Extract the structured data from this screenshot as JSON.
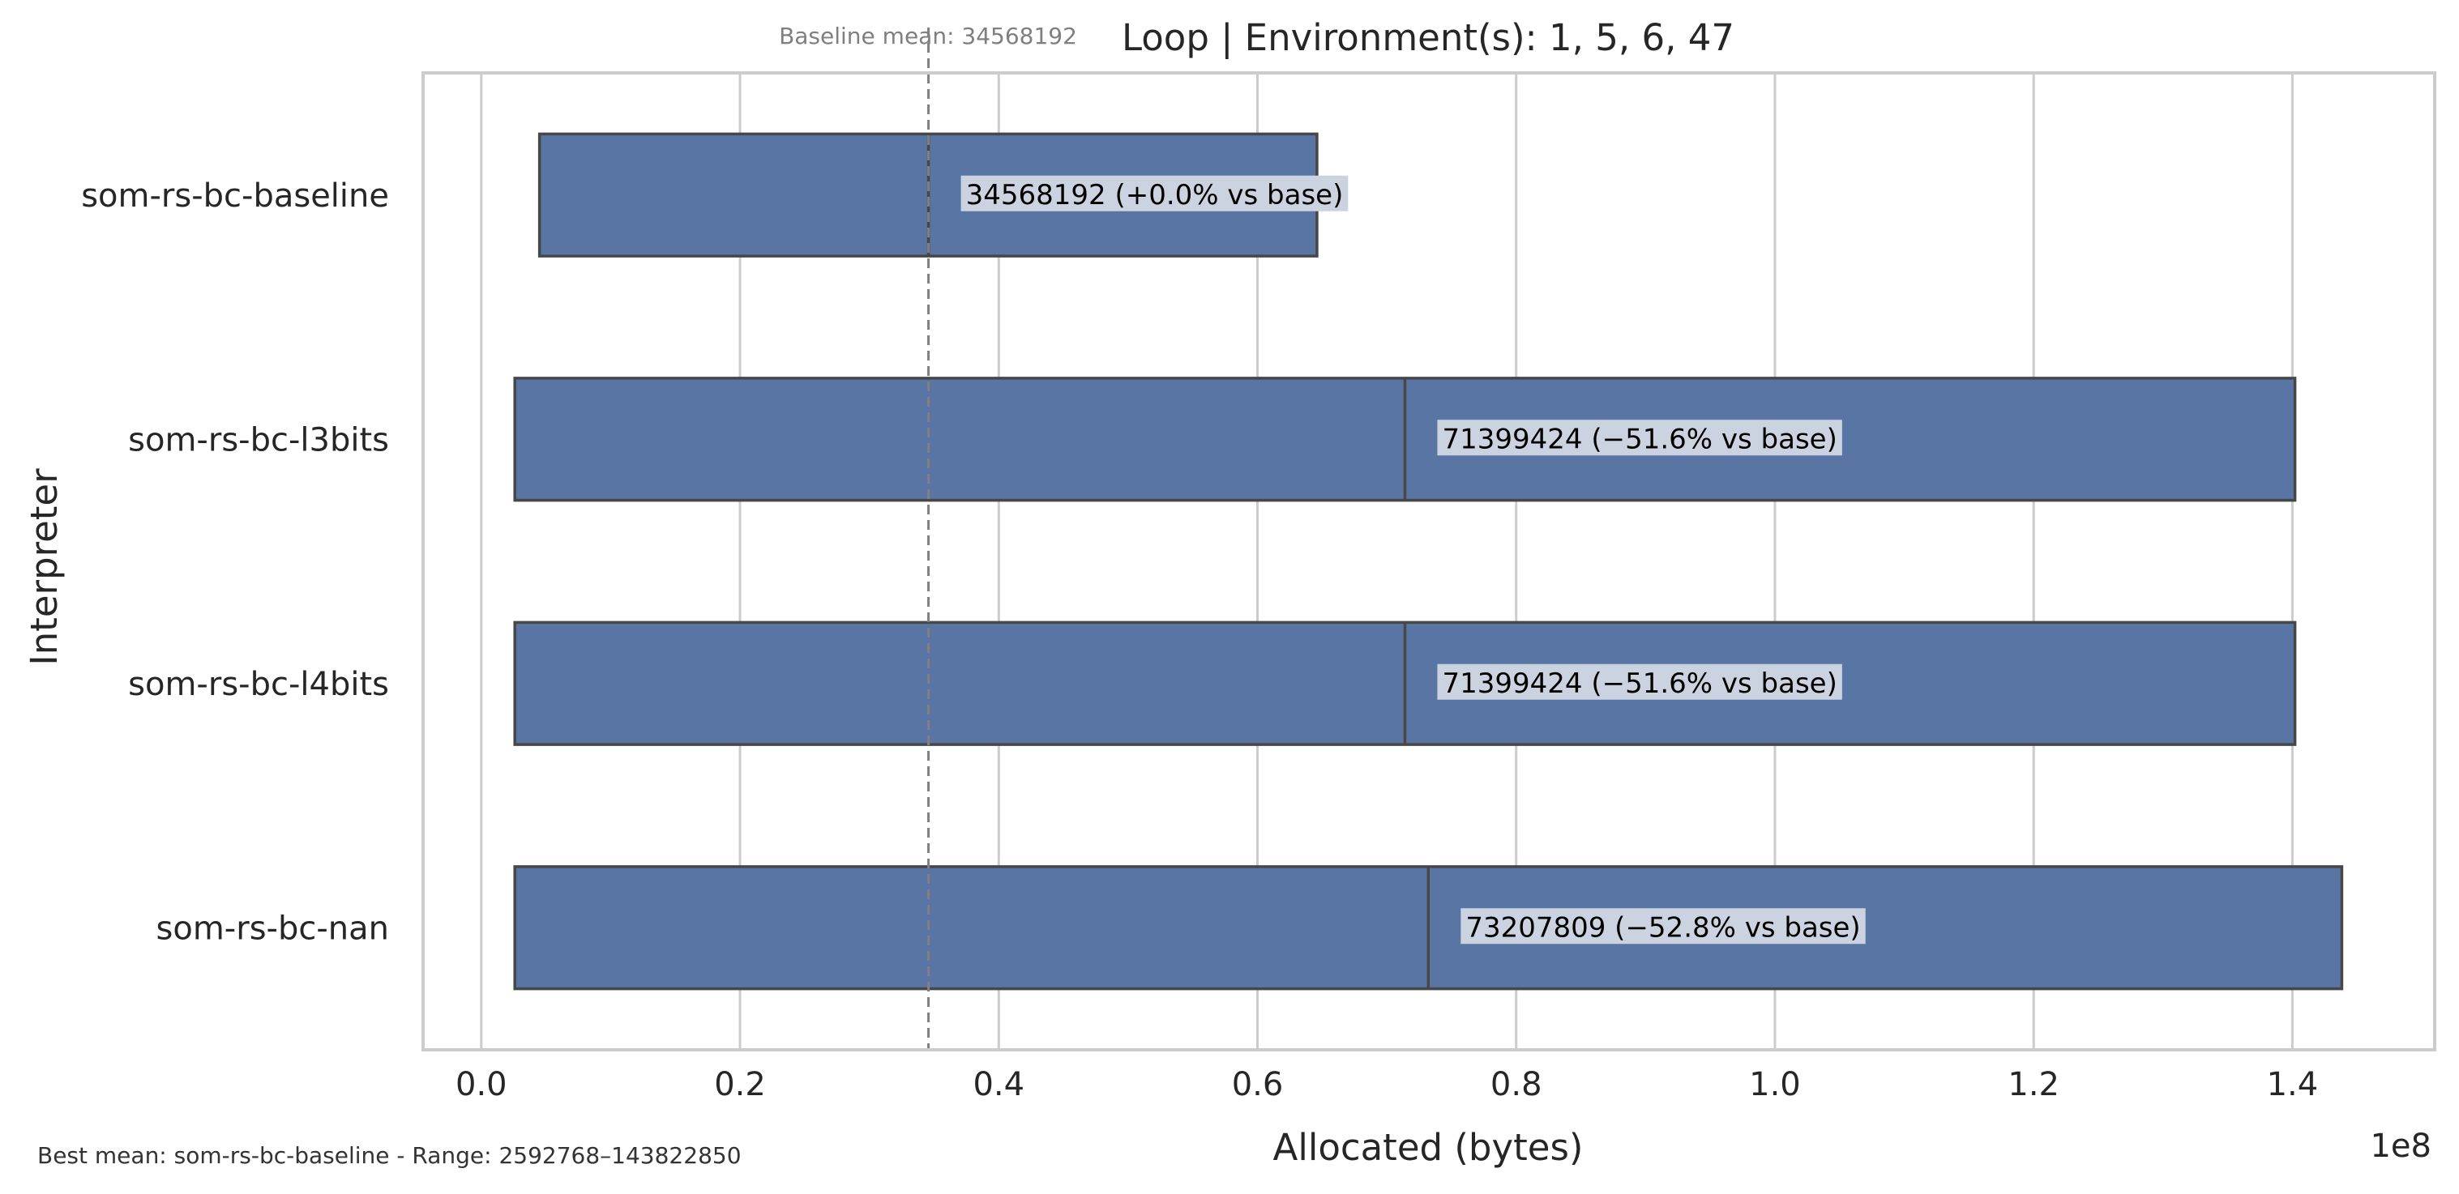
{
  "chart_data": {
    "type": "bar",
    "orientation": "horizontal",
    "title": "Loop | Environment(s): 1, 5, 6, 47",
    "baseline_note": "Baseline mean: 34568192",
    "xlabel": "Allocated (bytes)",
    "ylabel": "Interpreter",
    "x_offset_label": "1e8",
    "x_scale": 100000000,
    "xlim": [
      -0.045,
      1.51
    ],
    "xticks": [
      0.0,
      0.2,
      0.4,
      0.6,
      0.8,
      1.0,
      1.2,
      1.4
    ],
    "xtick_labels": [
      "0.0",
      "0.2",
      "0.4",
      "0.6",
      "0.8",
      "1.0",
      "1.2",
      "1.4"
    ],
    "grid": "vertical",
    "baseline_value": 34568192,
    "footnote": "Best mean: som-rs-bc-baseline - Range: 2592768–143822850",
    "categories": [
      "som-rs-bc-baseline",
      "som-rs-bc-l3bits",
      "som-rs-bc-l4bits",
      "som-rs-bc-nan"
    ],
    "boxes": [
      {
        "name": "som-rs-bc-baseline",
        "min": 4500000,
        "median": 34568192,
        "max": 64600000,
        "label": "34568192  (+0.0% vs base)"
      },
      {
        "name": "som-rs-bc-l3bits",
        "min": 2592768,
        "median": 71399424,
        "max": 140200000,
        "label": "71399424  (−51.6% vs base)"
      },
      {
        "name": "som-rs-bc-l4bits",
        "min": 2592768,
        "median": 71399424,
        "max": 140200000,
        "label": "71399424  (−51.6% vs base)"
      },
      {
        "name": "som-rs-bc-nan",
        "min": 2592768,
        "median": 73207809,
        "max": 143822850,
        "label": "73207809  (−52.8% vs base)"
      }
    ],
    "colors": {
      "bar_fill": "#5975a4",
      "bar_edge": "#474747",
      "grid": "#cccccc",
      "frame": "#cccccc",
      "baseline_line": "#808080",
      "label_bg": "#ccd3e0"
    }
  }
}
